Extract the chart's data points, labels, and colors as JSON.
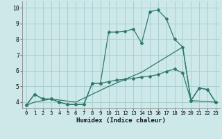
{
  "background_color": "#cde8e8",
  "grid_color": "#aacfcf",
  "line_color": "#2d7a6a",
  "xlabel": "Humidex (Indice chaleur)",
  "xlim": [
    -0.5,
    23.5
  ],
  "ylim": [
    3.6,
    10.4
  ],
  "xticks": [
    0,
    1,
    2,
    3,
    4,
    5,
    6,
    7,
    8,
    9,
    10,
    11,
    12,
    13,
    14,
    15,
    16,
    17,
    18,
    19,
    20,
    21,
    22,
    23
  ],
  "yticks": [
    4,
    5,
    6,
    7,
    8,
    9,
    10
  ],
  "curve1_x": [
    0,
    1,
    2,
    3,
    4,
    5,
    6,
    7,
    8,
    9,
    10,
    11,
    12,
    13,
    14,
    15,
    16,
    17,
    18,
    19,
    20,
    21,
    22,
    23
  ],
  "curve1_y": [
    3.8,
    4.5,
    4.2,
    4.2,
    4.0,
    3.85,
    3.85,
    3.85,
    5.2,
    5.2,
    8.45,
    8.45,
    8.5,
    8.65,
    7.75,
    9.75,
    9.85,
    9.3,
    8.0,
    7.5,
    4.1,
    4.9,
    4.8,
    4.0
  ],
  "curve2_x": [
    0,
    1,
    2,
    3,
    4,
    5,
    6,
    7,
    8,
    9,
    10,
    11,
    12,
    13,
    14,
    15,
    16,
    17,
    18,
    19,
    20,
    21,
    22,
    23
  ],
  "curve2_y": [
    3.8,
    4.5,
    4.2,
    4.2,
    4.0,
    3.85,
    3.85,
    3.85,
    5.2,
    5.2,
    5.3,
    5.4,
    5.45,
    5.5,
    5.6,
    5.65,
    5.75,
    5.95,
    6.1,
    5.85,
    4.1,
    4.9,
    4.8,
    4.0
  ],
  "curve3_x": [
    0,
    1,
    2,
    3,
    6,
    10,
    14,
    19,
    20,
    23
  ],
  "curve3_y": [
    3.8,
    4.0,
    4.1,
    4.2,
    4.0,
    5.0,
    5.9,
    7.5,
    4.1,
    4.0
  ]
}
